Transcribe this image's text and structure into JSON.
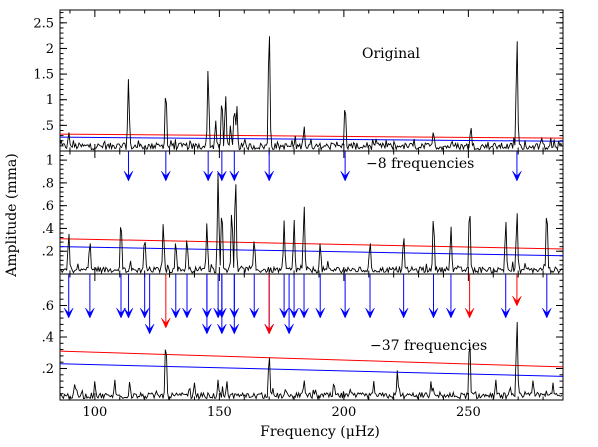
{
  "chart_data": {
    "type": "line",
    "xlabel": "Frequency (μHz)",
    "ylabel": "Amplitude (mma)",
    "xlim": [
      86,
      288
    ],
    "x_ticks": [
      100,
      150,
      200,
      250
    ],
    "x_tick_labels": [
      "100",
      "150",
      "200",
      "250"
    ],
    "colors": {
      "spectrum": "#000000",
      "threshold_red": "#ff0000",
      "threshold_blue": "#0000ff",
      "arrow_blue": "#0000ff",
      "arrow_red": "#ff0000"
    },
    "panels": [
      {
        "label": "Original",
        "ylim": [
          0,
          2.75
        ],
        "y_ticks": [
          0.5,
          1,
          1.5,
          2,
          2.5
        ],
        "y_tick_labels": [
          ".5",
          "1",
          "1.5",
          "2",
          "2.5"
        ],
        "red_line": [
          [
            86,
            0.33
          ],
          [
            288,
            0.25
          ]
        ],
        "blue_line": [
          [
            86,
            0.27
          ],
          [
            288,
            0.19
          ]
        ],
        "peaks": [
          [
            89.5,
            0.38
          ],
          [
            113.5,
            1.42
          ],
          [
            128.5,
            1.26
          ],
          [
            145.5,
            1.64
          ],
          [
            148.5,
            0.6
          ],
          [
            151,
            1.08
          ],
          [
            152.5,
            1.12
          ],
          [
            154.5,
            0.52
          ],
          [
            156,
            0.9
          ],
          [
            157,
            0.92
          ],
          [
            170,
            2.5
          ],
          [
            184,
            0.5
          ],
          [
            200.5,
            0.97
          ],
          [
            236,
            0.4
          ],
          [
            251,
            0.5
          ],
          [
            269.5,
            2.25
          ]
        ]
      },
      {
        "label": "−8 frequencies",
        "ylim": [
          0,
          1.08
        ],
        "y_ticks": [
          0.2,
          0.4,
          0.6,
          0.8,
          1
        ],
        "y_tick_labels": [
          ".2",
          ".4",
          ".6",
          ".8",
          "1"
        ],
        "red_line": [
          [
            86,
            0.31
          ],
          [
            288,
            0.22
          ]
        ],
        "blue_line": [
          [
            86,
            0.24
          ],
          [
            288,
            0.16
          ]
        ],
        "arrows_above_blue": [
          113.5,
          128.5,
          145.5,
          151,
          156,
          170,
          200.5,
          269.5
        ],
        "peaks": [
          [
            89.5,
            0.37
          ],
          [
            98,
            0.3
          ],
          [
            110.5,
            0.5
          ],
          [
            120,
            0.34
          ],
          [
            127.5,
            0.46
          ],
          [
            132.5,
            0.3
          ],
          [
            137,
            0.33
          ],
          [
            145,
            0.45
          ],
          [
            149.5,
            0.9
          ],
          [
            151,
            0.6
          ],
          [
            155,
            0.58
          ],
          [
            156.5,
            0.88
          ],
          [
            164,
            0.32
          ],
          [
            176,
            0.47
          ],
          [
            180,
            0.48
          ],
          [
            184,
            0.62
          ],
          [
            190.5,
            0.28
          ],
          [
            210.5,
            0.3
          ],
          [
            224,
            0.35
          ],
          [
            236,
            0.52
          ],
          [
            243,
            0.42
          ],
          [
            250.5,
            0.62
          ],
          [
            265,
            0.48
          ],
          [
            269.5,
            0.56
          ],
          [
            281.5,
            0.6
          ]
        ]
      },
      {
        "label": "−37 frequencies",
        "ylim": [
          0,
          0.8
        ],
        "y_ticks": [
          0.2,
          0.4,
          0.6
        ],
        "y_tick_labels": [
          ".2",
          ".4",
          ".6"
        ],
        "red_line": [
          [
            86,
            0.31
          ],
          [
            288,
            0.21
          ]
        ],
        "blue_line": [
          [
            86,
            0.23
          ],
          [
            288,
            0.15
          ]
        ],
        "arrows_above_blue": [
          89.5,
          98,
          110.5,
          113.5,
          120,
          132.5,
          137,
          145,
          149.5,
          151,
          156,
          164,
          176,
          180,
          184,
          190.5,
          200.5,
          210.5,
          224,
          236,
          243,
          265,
          281.5
        ],
        "arrows_above_red": [
          250.5,
          269.5
        ],
        "arrows_in_panel_blue": [
          122,
          145,
          151,
          156,
          170,
          178
        ],
        "arrows_in_panel_red": [
          128.5,
          170
        ],
        "peaks": [
          [
            92,
            0.11
          ],
          [
            100,
            0.12
          ],
          [
            108,
            0.13
          ],
          [
            114,
            0.12
          ],
          [
            128.5,
            0.39
          ],
          [
            140,
            0.11
          ],
          [
            149.5,
            0.13
          ],
          [
            153,
            0.12
          ],
          [
            170,
            0.3
          ],
          [
            184,
            0.13
          ],
          [
            196,
            0.12
          ],
          [
            212,
            0.12
          ],
          [
            221.5,
            0.19
          ],
          [
            235,
            0.12
          ],
          [
            250.5,
            0.41
          ],
          [
            261,
            0.13
          ],
          [
            269.5,
            0.52
          ],
          [
            276,
            0.13
          ],
          [
            284,
            0.11
          ]
        ]
      }
    ]
  }
}
